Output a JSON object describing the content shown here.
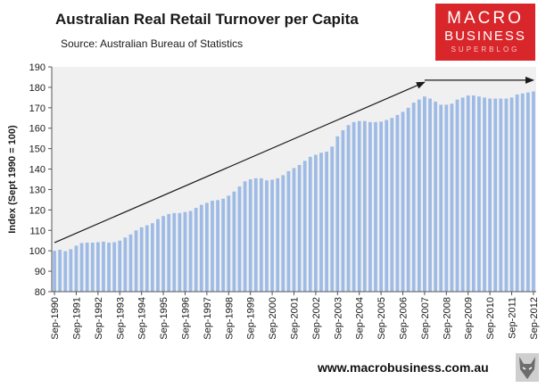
{
  "header": {
    "title": "Australian Real Retail Turnover per Capita",
    "source": "Source: Australian Bureau of Statistics"
  },
  "logo": {
    "line1": "MACRO",
    "line2": "BUSINESS",
    "line3": "SUPERBLOG"
  },
  "footer": {
    "url": "www.macrobusiness.com.au"
  },
  "colors": {
    "bar": "#9ebbe6",
    "plot_bg": "#f0f0f0",
    "logo_bg": "#d9262b",
    "arrow": "#1a1a1a"
  },
  "icons": {
    "mascot": "wolf-head-icon"
  },
  "chart_data": {
    "type": "bar",
    "title": "Australian Real Retail Turnover per Capita",
    "ylabel": "Index (Sept 1990 = 100)",
    "xlabel": "",
    "ylim": [
      80,
      190
    ],
    "yticks": [
      80,
      90,
      100,
      110,
      120,
      130,
      140,
      150,
      160,
      170,
      180,
      190
    ],
    "grid": false,
    "legend": "none",
    "categories": [
      "Sep-1990",
      "Dec-1990",
      "Mar-1991",
      "Jun-1991",
      "Sep-1991",
      "Dec-1991",
      "Mar-1992",
      "Jun-1992",
      "Sep-1992",
      "Dec-1992",
      "Mar-1993",
      "Jun-1993",
      "Sep-1993",
      "Dec-1993",
      "Mar-1994",
      "Jun-1994",
      "Sep-1994",
      "Dec-1994",
      "Mar-1995",
      "Jun-1995",
      "Sep-1995",
      "Dec-1995",
      "Mar-1996",
      "Jun-1996",
      "Sep-1996",
      "Dec-1996",
      "Mar-1997",
      "Jun-1997",
      "Sep-1997",
      "Dec-1997",
      "Mar-1998",
      "Jun-1998",
      "Sep-1998",
      "Dec-1998",
      "Mar-1999",
      "Jun-1999",
      "Sep-1999",
      "Dec-1999",
      "Mar-2000",
      "Jun-2000",
      "Sep-2000",
      "Dec-2000",
      "Mar-2001",
      "Jun-2001",
      "Sep-2001",
      "Dec-2001",
      "Mar-2002",
      "Jun-2002",
      "Sep-2002",
      "Dec-2002",
      "Mar-2003",
      "Jun-2003",
      "Sep-2003",
      "Dec-2003",
      "Mar-2004",
      "Jun-2004",
      "Sep-2004",
      "Dec-2004",
      "Mar-2005",
      "Jun-2005",
      "Sep-2005",
      "Dec-2005",
      "Mar-2006",
      "Jun-2006",
      "Sep-2006",
      "Dec-2006",
      "Mar-2007",
      "Jun-2007",
      "Sep-2007",
      "Dec-2007",
      "Mar-2008",
      "Jun-2008",
      "Sep-2008",
      "Dec-2008",
      "Mar-2009",
      "Jun-2009",
      "Sep-2009",
      "Dec-2009",
      "Mar-2010",
      "Jun-2010",
      "Sep-2010",
      "Dec-2010",
      "Mar-2011",
      "Jun-2011",
      "Sep-2011",
      "Dec-2011",
      "Mar-2012",
      "Jun-2012",
      "Sep-2012"
    ],
    "values": [
      100.0,
      100.5,
      99.8,
      100.8,
      102.5,
      103.8,
      104.0,
      104.0,
      104.2,
      104.5,
      104.0,
      104.2,
      105.0,
      106.5,
      108.0,
      110.0,
      111.5,
      112.5,
      113.5,
      115.5,
      117.0,
      118.0,
      118.5,
      118.5,
      119.0,
      119.5,
      121.0,
      122.5,
      123.5,
      124.5,
      124.8,
      125.5,
      127.0,
      129.0,
      131.5,
      134.0,
      135.0,
      135.5,
      135.5,
      134.5,
      134.8,
      135.5,
      137.0,
      139.0,
      140.5,
      142.0,
      144.0,
      146.0,
      147.0,
      148.0,
      148.5,
      151.0,
      156.0,
      159.0,
      161.5,
      163.0,
      163.5,
      163.5,
      163.0,
      163.0,
      163.2,
      164.0,
      165.0,
      166.5,
      168.0,
      170.0,
      172.5,
      174.0,
      175.5,
      174.5,
      173.0,
      171.5,
      171.5,
      172.0,
      174.0,
      175.0,
      176.0,
      176.0,
      175.5,
      175.0,
      174.5,
      174.5,
      174.5,
      174.5,
      175.0,
      176.5,
      177.0,
      177.5,
      178.0
    ],
    "xtick_labels": [
      "Sep-1990",
      "Sep-1991",
      "Sep-1992",
      "Sep-1993",
      "Sep-1994",
      "Sep-1995",
      "Sep-1996",
      "Sep-1997",
      "Sep-1998",
      "Sep-1999",
      "Sep-2000",
      "Sep-2001",
      "Sep-2002",
      "Sep-2003",
      "Sep-2004",
      "Sep-2005",
      "Sep-2006",
      "Sep-2007",
      "Sep-2008",
      "Sep-2009",
      "Sep-2010",
      "Sep-2011",
      "Sep-2012"
    ],
    "annotations": [
      {
        "type": "arrow",
        "from": [
          "Sep-1990",
          104
        ],
        "to": [
          "Sep-2007",
          182.5
        ]
      },
      {
        "type": "arrow",
        "from": [
          "Sep-2007",
          183.5
        ],
        "to": [
          "Sep-2012",
          183.5
        ]
      }
    ]
  }
}
